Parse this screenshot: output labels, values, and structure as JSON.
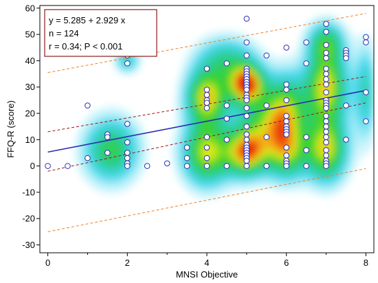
{
  "chart_data": {
    "type": "scatter",
    "xlabel": "MNSI Objective",
    "ylabel": "FFQ-R (score)",
    "xlim": [
      -0.2,
      8.2
    ],
    "ylim": [
      -33,
      61
    ],
    "x_ticks": [
      0,
      2,
      4,
      6,
      8
    ],
    "y_ticks": [
      -30,
      -20,
      -10,
      0,
      10,
      20,
      30,
      40,
      50,
      60
    ],
    "grid": false,
    "stats": {
      "equation": "y = 5.285 + 2.929 x",
      "n": "n = 124",
      "r_p": "r = 0.34; P < 0.001"
    },
    "regression": {
      "intercept": 5.285,
      "slope": 2.929,
      "color": "#2b2bb0"
    },
    "confidence_band": {
      "lower": [
        [
          0,
          -2
        ],
        [
          8,
          24
        ]
      ],
      "upper": [
        [
          0,
          13
        ],
        [
          8,
          34
        ]
      ],
      "color": "#a01010"
    },
    "prediction_band": {
      "lower": [
        [
          0,
          -25
        ],
        [
          8,
          -1
        ]
      ],
      "upper": [
        [
          0,
          35.5
        ],
        [
          8,
          58
        ]
      ],
      "color": "#f08020"
    },
    "density_hotspots": [
      {
        "x": 1.6,
        "y": 6,
        "sx": 0.45,
        "sy": 8,
        "w": 0.55
      },
      {
        "x": 2.0,
        "y": 40,
        "sx": 0.2,
        "sy": 3,
        "w": 0.35
      },
      {
        "x": 4.0,
        "y": 26,
        "sx": 0.35,
        "sy": 7,
        "w": 0.8
      },
      {
        "x": 4.0,
        "y": 5,
        "sx": 0.4,
        "sy": 8,
        "w": 0.75
      },
      {
        "x": 4.5,
        "y": 40,
        "sx": 0.5,
        "sy": 6,
        "w": 0.4
      },
      {
        "x": 5.0,
        "y": 31,
        "sx": 0.3,
        "sy": 5,
        "w": 1.0
      },
      {
        "x": 5.0,
        "y": 5,
        "sx": 0.35,
        "sy": 6,
        "w": 0.85
      },
      {
        "x": 5.5,
        "y": 16,
        "sx": 0.5,
        "sy": 8,
        "w": 0.5
      },
      {
        "x": 6.0,
        "y": 22,
        "sx": 0.35,
        "sy": 9,
        "w": 0.55
      },
      {
        "x": 6.0,
        "y": 5,
        "sx": 0.35,
        "sy": 7,
        "w": 0.6
      },
      {
        "x": 7.0,
        "y": 30,
        "sx": 0.35,
        "sy": 10,
        "w": 0.8
      },
      {
        "x": 7.0,
        "y": 6,
        "sx": 0.35,
        "sy": 8,
        "w": 0.75
      },
      {
        "x": 7.0,
        "y": 47,
        "sx": 0.3,
        "sy": 5,
        "w": 0.45
      },
      {
        "x": 8.0,
        "y": 28,
        "sx": 0.2,
        "sy": 12,
        "w": 0.35
      }
    ],
    "points": [
      [
        0,
        0
      ],
      [
        0.5,
        0
      ],
      [
        1,
        23
      ],
      [
        1,
        3
      ],
      [
        1.5,
        12
      ],
      [
        1.5,
        11
      ],
      [
        1.5,
        5
      ],
      [
        2,
        42
      ],
      [
        2,
        39
      ],
      [
        2,
        16
      ],
      [
        2,
        9
      ],
      [
        2,
        5
      ],
      [
        2,
        3
      ],
      [
        2,
        1
      ],
      [
        2,
        0
      ],
      [
        2.5,
        0
      ],
      [
        3,
        1
      ],
      [
        3.5,
        7
      ],
      [
        3.5,
        3
      ],
      [
        3.5,
        0
      ],
      [
        4,
        37
      ],
      [
        4,
        29
      ],
      [
        4,
        27
      ],
      [
        4,
        25
      ],
      [
        4,
        24
      ],
      [
        4,
        22
      ],
      [
        4,
        11
      ],
      [
        4,
        7
      ],
      [
        4,
        3
      ],
      [
        4,
        0
      ],
      [
        4.5,
        39
      ],
      [
        4.5,
        23
      ],
      [
        4.5,
        18
      ],
      [
        4.5,
        10
      ],
      [
        4.5,
        0
      ],
      [
        5,
        56
      ],
      [
        5,
        47
      ],
      [
        5,
        42
      ],
      [
        5,
        37
      ],
      [
        5,
        36
      ],
      [
        5,
        35
      ],
      [
        5,
        34
      ],
      [
        5,
        33
      ],
      [
        5,
        32
      ],
      [
        5,
        31
      ],
      [
        5,
        30
      ],
      [
        5,
        29
      ],
      [
        5,
        27
      ],
      [
        5,
        26
      ],
      [
        5,
        25
      ],
      [
        5,
        22
      ],
      [
        5,
        19
      ],
      [
        5,
        15
      ],
      [
        5,
        12
      ],
      [
        5,
        10
      ],
      [
        5,
        8
      ],
      [
        5,
        7
      ],
      [
        5,
        6
      ],
      [
        5,
        5
      ],
      [
        5,
        4
      ],
      [
        5,
        3
      ],
      [
        5,
        2
      ],
      [
        5,
        0
      ],
      [
        5.5,
        42
      ],
      [
        5.5,
        23
      ],
      [
        5.5,
        11
      ],
      [
        5.5,
        0
      ],
      [
        6,
        45
      ],
      [
        6,
        31
      ],
      [
        6,
        29
      ],
      [
        6,
        25
      ],
      [
        6,
        19
      ],
      [
        6,
        17
      ],
      [
        6,
        15
      ],
      [
        6,
        14
      ],
      [
        6,
        13
      ],
      [
        6,
        12
      ],
      [
        6,
        7
      ],
      [
        6,
        4
      ],
      [
        6,
        2
      ],
      [
        6,
        1
      ],
      [
        6,
        0
      ],
      [
        6.5,
        47
      ],
      [
        6.5,
        39
      ],
      [
        6.5,
        11
      ],
      [
        6.5,
        6
      ],
      [
        6.5,
        0
      ],
      [
        7,
        54
      ],
      [
        7,
        51
      ],
      [
        7,
        46
      ],
      [
        7,
        43
      ],
      [
        7,
        41
      ],
      [
        7,
        37
      ],
      [
        7,
        35
      ],
      [
        7,
        33
      ],
      [
        7,
        31
      ],
      [
        7,
        28
      ],
      [
        7,
        25
      ],
      [
        7,
        24
      ],
      [
        7,
        23
      ],
      [
        7,
        22
      ],
      [
        7,
        19
      ],
      [
        7,
        17
      ],
      [
        7,
        15
      ],
      [
        7,
        13
      ],
      [
        7,
        11
      ],
      [
        7,
        9
      ],
      [
        7,
        6
      ],
      [
        7,
        4
      ],
      [
        7,
        2
      ],
      [
        7,
        1
      ],
      [
        7,
        0
      ],
      [
        7.5,
        44
      ],
      [
        7.5,
        43
      ],
      [
        7.5,
        42
      ],
      [
        7.5,
        41
      ],
      [
        7.5,
        23
      ],
      [
        7.5,
        10
      ],
      [
        8,
        49
      ],
      [
        8,
        47
      ],
      [
        8,
        28
      ],
      [
        8,
        17
      ]
    ],
    "point_style": {
      "fill": "#ffffff",
      "stroke": "#2b2bb0"
    },
    "legend_box_color": "#8b1a1a"
  }
}
